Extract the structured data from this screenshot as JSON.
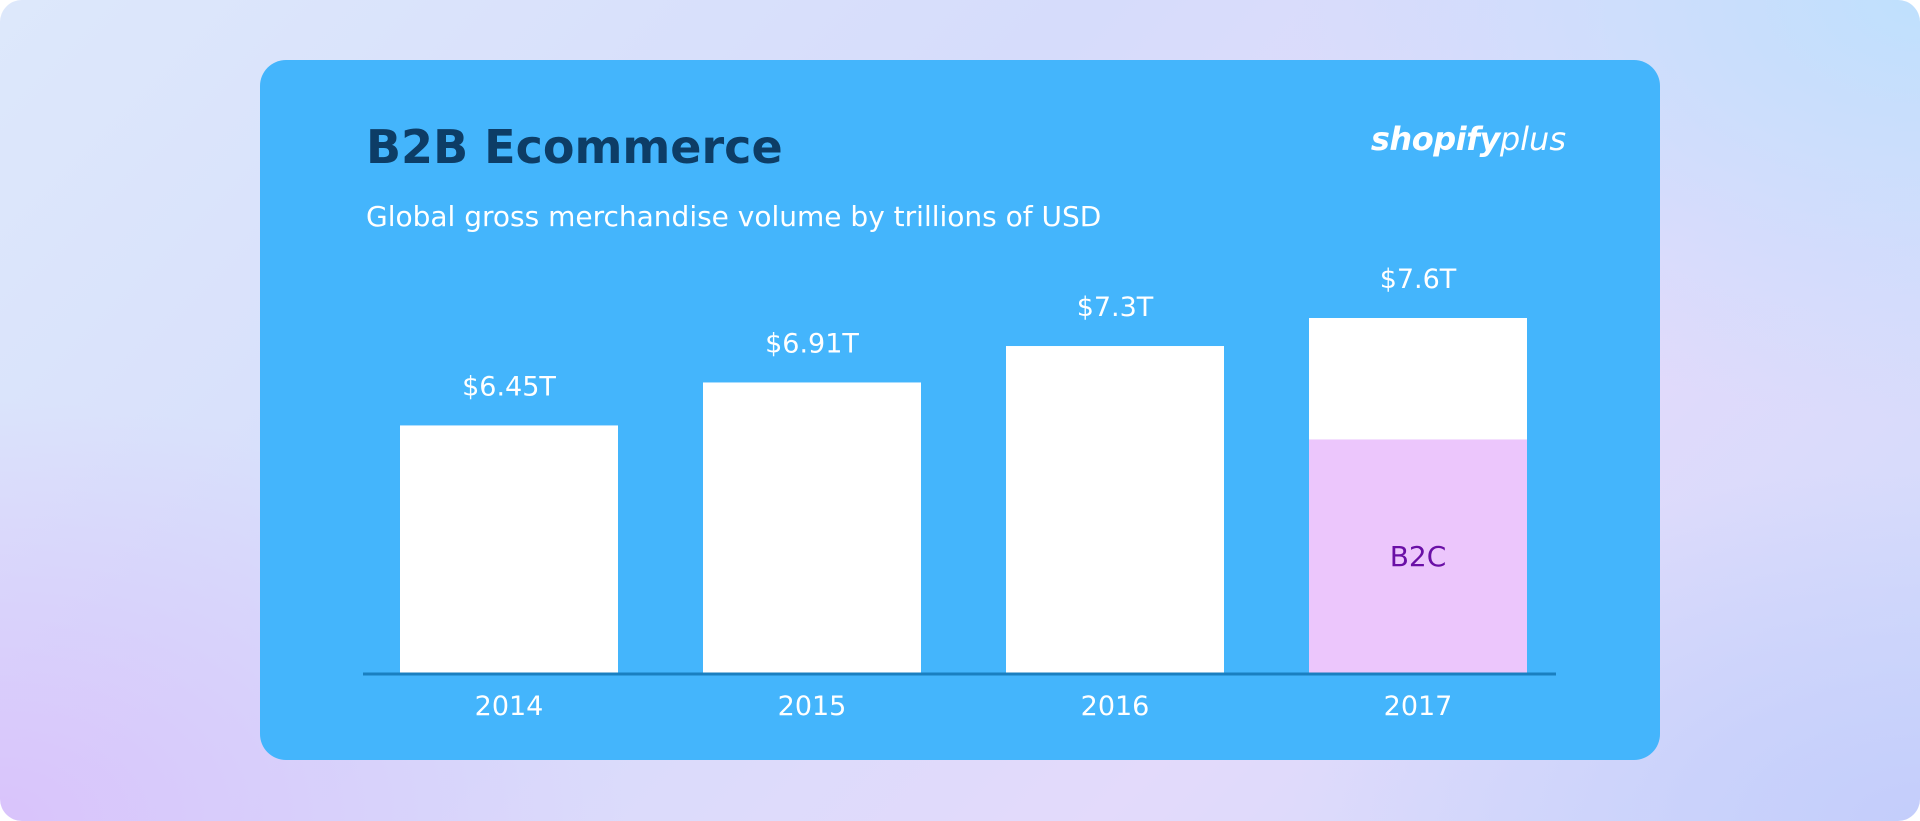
{
  "card": {
    "title": "B2B Ecommerce",
    "subtitle": "Global gross merchandise volume by trillions of USD",
    "logo_primary": "shopify",
    "logo_secondary": "plus",
    "background_color": "#44b5fc"
  },
  "chart_data": {
    "type": "bar",
    "title": "B2B Ecommerce",
    "subtitle": "Global gross merchandise volume by trillions of USD",
    "xlabel": "",
    "ylabel": "",
    "grid": false,
    "categories": [
      "2014",
      "2015",
      "2016",
      "2017"
    ],
    "values": [
      6.45,
      6.91,
      7.3,
      7.6
    ],
    "value_labels": [
      "$6.45T",
      "$6.91T",
      "$7.3T",
      "$7.6T"
    ],
    "b2c_segment": {
      "category": "2017",
      "label": "B2C",
      "value": 2.5
    },
    "ylim": [
      3.8,
      7.6
    ],
    "colors": {
      "bar": "#ffffff",
      "b2c_segment": "#ecc6fc",
      "b2c_label": "#6a0fa6",
      "axis": "#1a7fc0",
      "text": "#ffffff"
    }
  }
}
